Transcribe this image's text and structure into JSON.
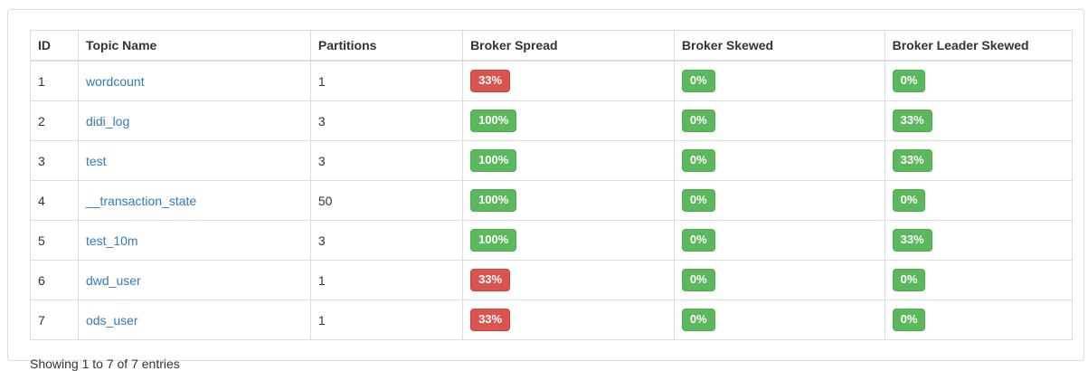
{
  "colors": {
    "danger_badge": "#d9534f",
    "success_badge": "#5cb85c",
    "link": "#337ab7",
    "table_border": "#dddddd"
  },
  "table": {
    "columns": [
      "ID",
      "Topic Name",
      "Partitions",
      "Broker Spread",
      "Broker Skewed",
      "Broker Leader Skewed"
    ],
    "rows": [
      {
        "id": "1",
        "topic_name": "wordcount",
        "partitions": "1",
        "broker_spread": {
          "value": "33%",
          "status": "danger"
        },
        "broker_skewed": {
          "value": "0%",
          "status": "success"
        },
        "broker_leader_skewed": {
          "value": "0%",
          "status": "success"
        }
      },
      {
        "id": "2",
        "topic_name": "didi_log",
        "partitions": "3",
        "broker_spread": {
          "value": "100%",
          "status": "success"
        },
        "broker_skewed": {
          "value": "0%",
          "status": "success"
        },
        "broker_leader_skewed": {
          "value": "33%",
          "status": "success"
        }
      },
      {
        "id": "3",
        "topic_name": "test",
        "partitions": "3",
        "broker_spread": {
          "value": "100%",
          "status": "success"
        },
        "broker_skewed": {
          "value": "0%",
          "status": "success"
        },
        "broker_leader_skewed": {
          "value": "33%",
          "status": "success"
        }
      },
      {
        "id": "4",
        "topic_name": "__transaction_state",
        "partitions": "50",
        "broker_spread": {
          "value": "100%",
          "status": "success"
        },
        "broker_skewed": {
          "value": "0%",
          "status": "success"
        },
        "broker_leader_skewed": {
          "value": "0%",
          "status": "success"
        }
      },
      {
        "id": "5",
        "topic_name": "test_10m",
        "partitions": "3",
        "broker_spread": {
          "value": "100%",
          "status": "success"
        },
        "broker_skewed": {
          "value": "0%",
          "status": "success"
        },
        "broker_leader_skewed": {
          "value": "33%",
          "status": "success"
        }
      },
      {
        "id": "6",
        "topic_name": "dwd_user",
        "partitions": "1",
        "broker_spread": {
          "value": "33%",
          "status": "danger"
        },
        "broker_skewed": {
          "value": "0%",
          "status": "success"
        },
        "broker_leader_skewed": {
          "value": "0%",
          "status": "success"
        }
      },
      {
        "id": "7",
        "topic_name": "ods_user",
        "partitions": "1",
        "broker_spread": {
          "value": "33%",
          "status": "danger"
        },
        "broker_skewed": {
          "value": "0%",
          "status": "success"
        },
        "broker_leader_skewed": {
          "value": "0%",
          "status": "success"
        }
      }
    ]
  },
  "footer": {
    "showing_text": "Showing 1 to 7 of 7 entries"
  }
}
